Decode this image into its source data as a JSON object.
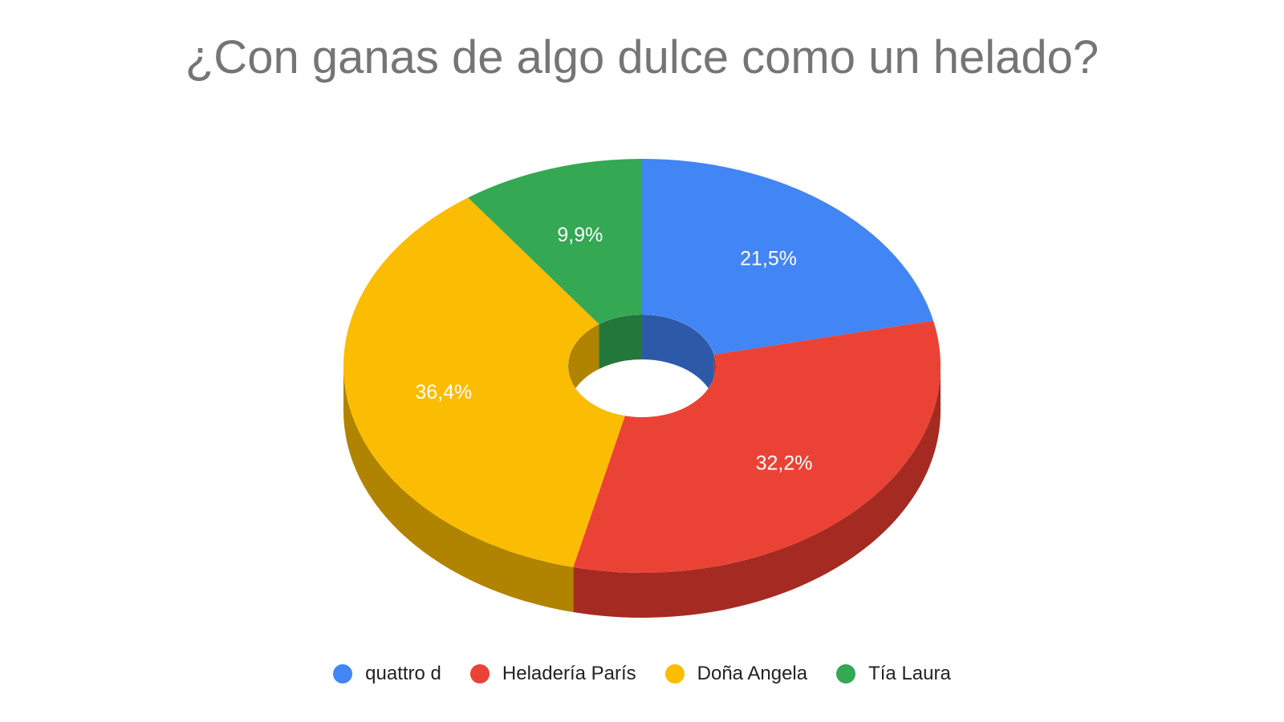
{
  "chart_data": {
    "type": "pie",
    "title": "¿Con ganas de algo dulce como un helado?",
    "style": "3d-donut",
    "legend_position": "bottom",
    "slices": [
      {
        "name": "quattro d",
        "value": 21.5,
        "label": "21,5%",
        "color": "#4285f4",
        "side_color": "#2d5aa8"
      },
      {
        "name": "Heladería París",
        "value": 32.2,
        "label": "32,2%",
        "color": "#ea4335",
        "side_color": "#a52a22"
      },
      {
        "name": "Doña Angela",
        "value": 36.4,
        "label": "36,4%",
        "color": "#fbbc04",
        "side_color": "#b08300"
      },
      {
        "name": "Tía Laura",
        "value": 9.9,
        "label": "9,9%",
        "color": "#34a853",
        "side_color": "#22773a"
      }
    ]
  }
}
